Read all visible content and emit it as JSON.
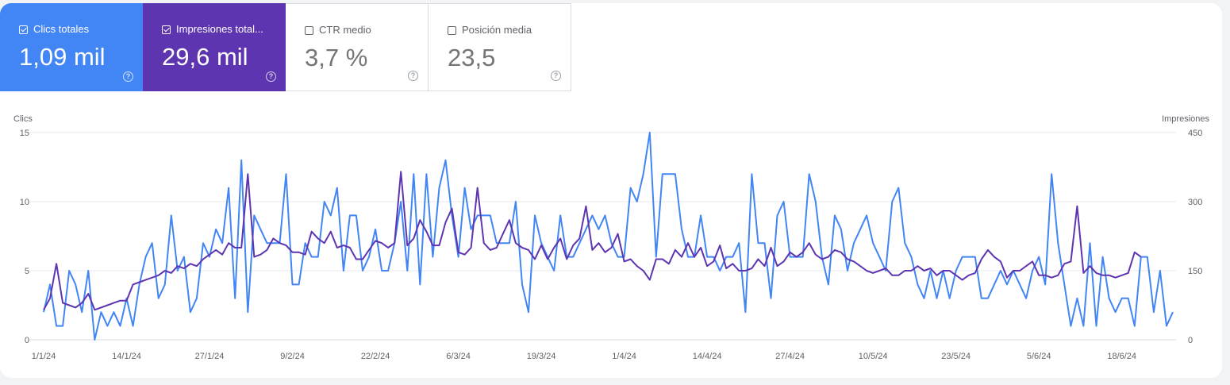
{
  "metrics": [
    {
      "label": "Clics totales",
      "value": "1,09 mil",
      "checked": true,
      "color": "#4285f4"
    },
    {
      "label": "Impresiones total...",
      "value": "29,6 mil",
      "checked": true,
      "color": "#5e35b1"
    },
    {
      "label": "CTR medio",
      "value": "3,7 %",
      "checked": false
    },
    {
      "label": "Posición media",
      "value": "23,5",
      "checked": false
    }
  ],
  "help_glyph": "?",
  "colors": {
    "clicks": "#4285f4",
    "impressions": "#5e35b1",
    "grid": "#e8eaed",
    "text": "#5f6368"
  },
  "icons": {
    "checkbox": "checkbox-icon",
    "help": "help-circle-icon"
  },
  "chart_data": {
    "type": "line",
    "x_tick_labels": [
      "1/1/24",
      "14/1/24",
      "27/1/24",
      "9/2/24",
      "22/2/24",
      "6/3/24",
      "19/3/24",
      "1/4/24",
      "14/4/24",
      "27/4/24",
      "10/5/24",
      "23/5/24",
      "5/6/24",
      "18/6/24"
    ],
    "left_axis": {
      "title": "Clics",
      "ylim": [
        0,
        15
      ],
      "ticks": [
        0,
        5,
        10,
        15
      ]
    },
    "right_axis": {
      "title": "Impresiones",
      "ylim": [
        0,
        450
      ],
      "ticks": [
        0,
        150,
        300,
        450
      ]
    },
    "series": [
      {
        "name": "Clics totales",
        "axis": "left",
        "values": [
          2,
          4,
          1,
          1,
          5,
          4,
          2,
          5,
          0,
          2,
          1,
          2,
          1,
          3,
          1,
          4,
          6,
          7,
          3,
          4,
          9,
          5,
          6,
          2,
          3,
          7,
          6,
          8,
          7,
          11,
          3,
          13,
          2,
          9,
          8,
          7,
          7,
          7,
          12,
          4,
          4,
          7,
          6,
          6,
          10,
          9,
          11,
          5,
          9,
          9,
          5,
          6,
          8,
          5,
          5,
          7,
          10,
          5,
          12,
          4,
          12,
          6,
          11,
          13,
          9,
          6,
          11,
          8,
          9,
          9,
          9,
          7,
          7,
          7,
          10,
          4,
          2,
          9,
          7,
          6,
          5,
          9,
          6,
          6,
          7,
          8,
          9,
          8,
          9,
          7,
          6,
          6,
          11,
          10,
          12,
          15,
          6,
          12,
          12,
          12,
          8,
          6,
          6,
          9,
          6,
          6,
          5,
          6,
          6,
          7,
          2,
          12,
          7,
          7,
          3,
          9,
          10,
          6,
          6,
          6,
          12,
          10,
          6,
          4,
          9,
          8,
          5,
          7,
          8,
          9,
          7,
          6,
          5,
          10,
          11,
          7,
          6,
          4,
          3,
          5,
          3,
          5,
          3,
          5,
          6,
          6,
          6,
          3,
          3,
          4,
          5,
          4,
          5,
          4,
          3,
          5,
          6,
          4,
          12,
          7,
          4,
          1,
          3,
          1,
          7,
          1,
          6,
          3,
          2,
          3,
          3,
          1,
          6,
          6,
          2,
          5,
          1,
          2
        ],
        "color": "#4285f4"
      },
      {
        "name": "Impresiones total...",
        "axis": "right",
        "values": [
          65,
          90,
          165,
          80,
          75,
          70,
          80,
          100,
          65,
          70,
          75,
          80,
          85,
          85,
          120,
          125,
          130,
          135,
          140,
          150,
          145,
          160,
          155,
          165,
          160,
          175,
          185,
          195,
          185,
          210,
          200,
          200,
          360,
          180,
          185,
          195,
          220,
          210,
          205,
          190,
          190,
          185,
          235,
          220,
          210,
          235,
          200,
          205,
          200,
          175,
          175,
          195,
          215,
          210,
          200,
          210,
          365,
          205,
          220,
          260,
          235,
          205,
          205,
          255,
          285,
          190,
          185,
          200,
          330,
          210,
          195,
          200,
          230,
          260,
          210,
          200,
          195,
          175,
          205,
          175,
          200,
          220,
          175,
          205,
          220,
          290,
          195,
          210,
          190,
          200,
          230,
          170,
          175,
          160,
          150,
          130,
          175,
          175,
          165,
          195,
          180,
          210,
          180,
          200,
          160,
          170,
          205,
          155,
          165,
          150,
          150,
          155,
          175,
          160,
          200,
          160,
          170,
          190,
          180,
          190,
          210,
          185,
          175,
          180,
          195,
          190,
          175,
          170,
          160,
          150,
          145,
          150,
          155,
          140,
          140,
          150,
          150,
          160,
          150,
          155,
          140,
          150,
          150,
          140,
          130,
          140,
          145,
          175,
          195,
          180,
          170,
          135,
          150,
          150,
          160,
          170,
          140,
          140,
          135,
          140,
          165,
          170,
          290,
          145,
          160,
          145,
          140,
          140,
          135,
          140,
          145,
          190,
          180
        ],
        "color": "#5e35b1"
      }
    ],
    "grid": true
  }
}
